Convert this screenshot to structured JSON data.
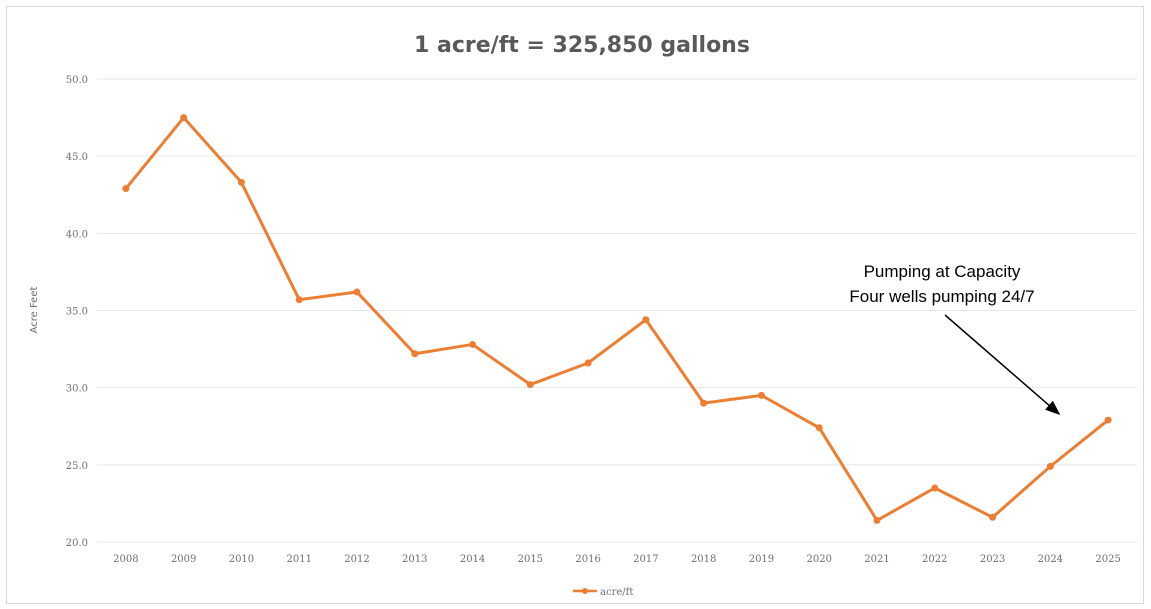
{
  "chart_data": {
    "type": "line",
    "title": "1 acre/ft  = 325,850 gallons",
    "xlabel": "",
    "ylabel": "Acre Feet",
    "ylim": [
      20.0,
      50.0
    ],
    "yticks": [
      "20.0",
      "25.0",
      "30.0",
      "35.0",
      "40.0",
      "45.0",
      "50.0"
    ],
    "categories": [
      "2008",
      "2009",
      "2010",
      "2011",
      "2012",
      "2013",
      "2014",
      "2015",
      "2016",
      "2017",
      "2018",
      "2019",
      "2020",
      "2021",
      "2022",
      "2023",
      "2024",
      "2025"
    ],
    "series": [
      {
        "name": "acre/ft",
        "color": "#ed7d31",
        "values": [
          42.9,
          47.5,
          43.3,
          35.7,
          36.2,
          32.2,
          32.8,
          30.2,
          31.6,
          34.4,
          29.0,
          29.5,
          27.4,
          21.4,
          23.5,
          21.6,
          24.9,
          27.9
        ]
      }
    ],
    "annotation": {
      "lines": [
        "Pumping at Capacity",
        "Four wells pumping 24/7"
      ],
      "points_to": "2025"
    },
    "grid": true,
    "legend_position": "bottom"
  }
}
